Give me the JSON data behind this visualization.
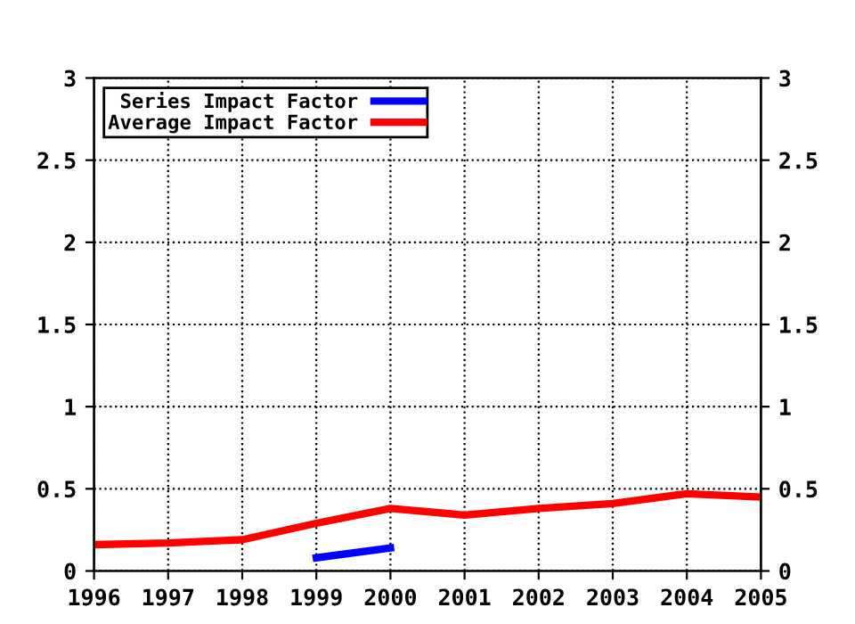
{
  "chart_data": {
    "type": "line",
    "x": [
      1996,
      1997,
      1998,
      1999,
      2000,
      2001,
      2002,
      2003,
      2004,
      2005
    ],
    "series": [
      {
        "name": "Series Impact Factor",
        "color": "#0000ff",
        "values": [
          null,
          null,
          null,
          0.08,
          0.14,
          null,
          null,
          null,
          null,
          null
        ]
      },
      {
        "name": "Average Impact Factor",
        "color": "#ff0000",
        "values": [
          0.16,
          0.17,
          0.19,
          0.29,
          0.38,
          0.34,
          0.38,
          0.41,
          0.47,
          0.45
        ]
      }
    ],
    "xlim": [
      1996,
      2005
    ],
    "xticks": [
      1996,
      1997,
      1998,
      1999,
      2000,
      2001,
      2002,
      2003,
      2004,
      2005
    ],
    "ylim": [
      0,
      3
    ],
    "yticks": [
      0,
      0.5,
      1,
      1.5,
      2,
      2.5,
      3
    ],
    "y2lim": [
      0,
      3
    ],
    "y2ticks": [
      0,
      0.5,
      1,
      1.5,
      2,
      2.5,
      3
    ],
    "grid": true,
    "legend": "top left",
    "line_style": "solid",
    "marker": "none"
  }
}
